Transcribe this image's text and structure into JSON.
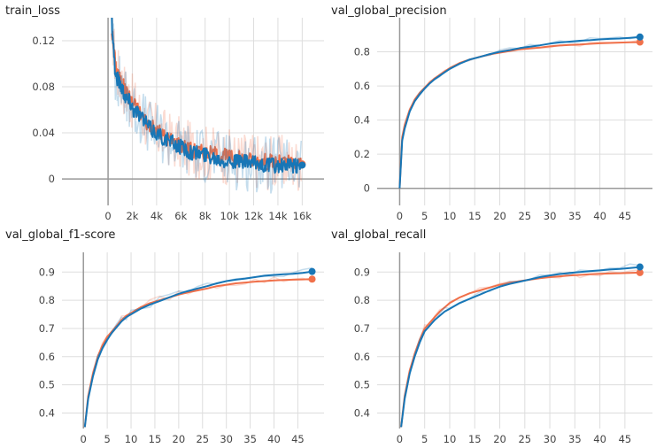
{
  "colors": {
    "orange": "#f0704a",
    "blue": "#1776b6",
    "grid": "#dddddd",
    "axis": "#999999"
  },
  "chart_data": [
    {
      "type": "line",
      "title": "train_loss",
      "xlabel": "",
      "ylabel": "",
      "xlim": [
        -3800,
        17800
      ],
      "ylim": [
        -0.023,
        0.14
      ],
      "xticks": [
        0,
        2000,
        4000,
        6000,
        8000,
        10000,
        12000,
        14000,
        16000
      ],
      "xtick_labels": [
        "0",
        "2k",
        "4k",
        "6k",
        "8k",
        "10k",
        "12k",
        "14k",
        "16k"
      ],
      "yticks": [
        0,
        0.04,
        0.08,
        0.12
      ],
      "ytick_labels": [
        "0",
        "0.04",
        "0.08",
        "0.12"
      ],
      "grid": true,
      "series": [
        {
          "color": "orange",
          "x": [
            300,
            600,
            900,
            1200,
            1500,
            1800,
            2100,
            2500,
            3000,
            3500,
            4000,
            4500,
            5000,
            5500,
            6000,
            6500,
            7000,
            7500,
            8000,
            8500,
            9000,
            9500,
            10000,
            10500,
            11000,
            11500,
            12000,
            12500,
            13000,
            13500,
            14000,
            14500,
            15000,
            15500,
            16000
          ],
          "y": [
            0.13,
            0.1,
            0.088,
            0.082,
            0.075,
            0.07,
            0.065,
            0.06,
            0.052,
            0.045,
            0.042,
            0.038,
            0.035,
            0.032,
            0.03,
            0.027,
            0.025,
            0.024,
            0.023,
            0.022,
            0.021,
            0.02,
            0.019,
            0.018,
            0.018,
            0.017,
            0.016,
            0.016,
            0.015,
            0.015,
            0.014,
            0.014,
            0.014,
            0.013,
            0.013
          ]
        },
        {
          "color": "blue",
          "x": [
            300,
            600,
            900,
            1200,
            1500,
            1800,
            2100,
            2500,
            3000,
            3500,
            4000,
            4500,
            5000,
            5500,
            6000,
            6500,
            7000,
            7500,
            8000,
            8500,
            9000,
            9500,
            10000,
            10500,
            11000,
            11500,
            12000,
            12500,
            13000,
            13500,
            14000,
            14500,
            15000,
            15500,
            16000
          ],
          "y": [
            0.14,
            0.09,
            0.085,
            0.078,
            0.07,
            0.068,
            0.06,
            0.058,
            0.05,
            0.043,
            0.04,
            0.036,
            0.033,
            0.03,
            0.028,
            0.025,
            0.023,
            0.022,
            0.021,
            0.02,
            0.018,
            0.017,
            0.016,
            0.015,
            0.015,
            0.014,
            0.013,
            0.013,
            0.012,
            0.012,
            0.011,
            0.011,
            0.011,
            0.011,
            0.012
          ]
        }
      ]
    },
    {
      "type": "line",
      "title": "val_global_precision",
      "xlabel": "",
      "ylabel": "",
      "xlim": [
        -4.5,
        50.5
      ],
      "ylim": [
        -0.1,
        1.0
      ],
      "xticks": [
        0,
        5,
        10,
        15,
        20,
        25,
        30,
        35,
        40,
        45
      ],
      "xtick_labels": [
        "0",
        "5",
        "10",
        "15",
        "20",
        "25",
        "30",
        "35",
        "40",
        "45"
      ],
      "yticks": [
        0,
        0.2,
        0.4,
        0.6,
        0.8
      ],
      "ytick_labels": [
        "0",
        "0.2",
        "0.4",
        "0.6",
        "0.8"
      ],
      "grid": true,
      "series": [
        {
          "color": "orange",
          "x": [
            0,
            0.5,
            1,
            2,
            3,
            4,
            5,
            6,
            7,
            8,
            9,
            10,
            12,
            14,
            16,
            18,
            20,
            22,
            24,
            26,
            28,
            30,
            32,
            34,
            36,
            38,
            40,
            42,
            44,
            46,
            48
          ],
          "y": [
            0,
            0.3,
            0.37,
            0.46,
            0.52,
            0.56,
            0.59,
            0.62,
            0.645,
            0.665,
            0.685,
            0.705,
            0.735,
            0.755,
            0.77,
            0.785,
            0.795,
            0.805,
            0.815,
            0.82,
            0.825,
            0.832,
            0.837,
            0.84,
            0.843,
            0.847,
            0.85,
            0.852,
            0.854,
            0.856,
            0.857
          ]
        },
        {
          "color": "blue",
          "x": [
            0,
            0.5,
            1,
            2,
            3,
            4,
            5,
            6,
            7,
            8,
            9,
            10,
            12,
            14,
            16,
            18,
            20,
            22,
            24,
            26,
            28,
            30,
            32,
            34,
            36,
            38,
            40,
            42,
            44,
            46,
            48
          ],
          "y": [
            0,
            0.28,
            0.35,
            0.45,
            0.51,
            0.55,
            0.585,
            0.615,
            0.64,
            0.66,
            0.68,
            0.7,
            0.73,
            0.755,
            0.77,
            0.787,
            0.8,
            0.81,
            0.822,
            0.83,
            0.838,
            0.848,
            0.855,
            0.86,
            0.865,
            0.868,
            0.873,
            0.876,
            0.878,
            0.882,
            0.887
          ]
        }
      ]
    },
    {
      "type": "line",
      "title": "val_global_f1-score",
      "xlabel": "",
      "ylabel": "",
      "xlim": [
        -4.5,
        50.5
      ],
      "ylim": [
        0.345,
        0.97
      ],
      "xticks": [
        0,
        5,
        10,
        15,
        20,
        25,
        30,
        35,
        40,
        45
      ],
      "xtick_labels": [
        "0",
        "5",
        "10",
        "15",
        "20",
        "25",
        "30",
        "35",
        "40",
        "45"
      ],
      "yticks": [
        0.4,
        0.5,
        0.6,
        0.7,
        0.8,
        0.9
      ],
      "ytick_labels": [
        "0.4",
        "0.5",
        "0.6",
        "0.7",
        "0.8",
        "0.9"
      ],
      "grid": true,
      "series": [
        {
          "color": "orange",
          "x": [
            0.3,
            1,
            2,
            3,
            4,
            5,
            6,
            7,
            8,
            9,
            10,
            12,
            14,
            16,
            18,
            20,
            22,
            24,
            26,
            28,
            30,
            32,
            34,
            36,
            38,
            40,
            42,
            44,
            46,
            48
          ],
          "y": [
            0.35,
            0.46,
            0.54,
            0.6,
            0.64,
            0.67,
            0.69,
            0.71,
            0.73,
            0.745,
            0.755,
            0.775,
            0.79,
            0.8,
            0.81,
            0.82,
            0.828,
            0.835,
            0.842,
            0.85,
            0.855,
            0.86,
            0.863,
            0.866,
            0.868,
            0.87,
            0.872,
            0.873,
            0.874,
            0.875
          ]
        },
        {
          "color": "blue",
          "x": [
            0.3,
            1,
            2,
            3,
            4,
            5,
            6,
            7,
            8,
            9,
            10,
            12,
            14,
            16,
            18,
            20,
            22,
            24,
            26,
            28,
            30,
            32,
            34,
            36,
            38,
            40,
            42,
            44,
            46,
            48
          ],
          "y": [
            0.35,
            0.45,
            0.53,
            0.59,
            0.63,
            0.66,
            0.685,
            0.705,
            0.725,
            0.74,
            0.75,
            0.77,
            0.785,
            0.797,
            0.81,
            0.823,
            0.833,
            0.842,
            0.85,
            0.86,
            0.868,
            0.873,
            0.877,
            0.882,
            0.887,
            0.89,
            0.892,
            0.894,
            0.897,
            0.902
          ]
        }
      ]
    },
    {
      "type": "line",
      "title": "val_global_recall",
      "xlabel": "",
      "ylabel": "",
      "xlim": [
        -4.5,
        50.5
      ],
      "ylim": [
        0.345,
        0.97
      ],
      "xticks": [
        0,
        5,
        10,
        15,
        20,
        25,
        30,
        35,
        40,
        45
      ],
      "xtick_labels": [
        "0",
        "5",
        "10",
        "15",
        "20",
        "25",
        "30",
        "35",
        "40",
        "45"
      ],
      "yticks": [
        0.4,
        0.5,
        0.6,
        0.7,
        0.8,
        0.9
      ],
      "ytick_labels": [
        "0.4",
        "0.5",
        "0.6",
        "0.7",
        "0.8",
        "0.9"
      ],
      "grid": true,
      "series": [
        {
          "color": "orange",
          "x": [
            0.3,
            1,
            2,
            3,
            4,
            5,
            6,
            7,
            8,
            9,
            10,
            12,
            14,
            16,
            18,
            20,
            22,
            24,
            26,
            28,
            30,
            32,
            34,
            36,
            38,
            40,
            42,
            44,
            46,
            48
          ],
          "y": [
            0.35,
            0.46,
            0.55,
            0.61,
            0.66,
            0.7,
            0.72,
            0.74,
            0.76,
            0.775,
            0.79,
            0.81,
            0.825,
            0.835,
            0.845,
            0.855,
            0.862,
            0.868,
            0.873,
            0.878,
            0.882,
            0.885,
            0.888,
            0.89,
            0.892,
            0.894,
            0.895,
            0.896,
            0.897,
            0.898
          ]
        },
        {
          "color": "blue",
          "x": [
            0.3,
            1,
            2,
            3,
            4,
            5,
            6,
            7,
            8,
            9,
            10,
            12,
            14,
            16,
            18,
            20,
            22,
            24,
            26,
            28,
            30,
            32,
            34,
            36,
            38,
            40,
            42,
            44,
            46,
            48
          ],
          "y": [
            0.35,
            0.45,
            0.54,
            0.6,
            0.65,
            0.69,
            0.71,
            0.73,
            0.745,
            0.76,
            0.77,
            0.79,
            0.805,
            0.82,
            0.835,
            0.848,
            0.858,
            0.866,
            0.874,
            0.882,
            0.888,
            0.893,
            0.897,
            0.9,
            0.903,
            0.906,
            0.909,
            0.911,
            0.914,
            0.918
          ]
        }
      ]
    }
  ]
}
